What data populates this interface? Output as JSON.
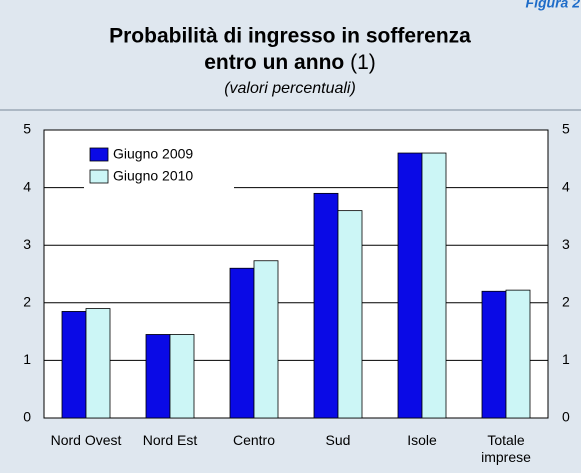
{
  "figure_label": "Figura 2",
  "chart_data": {
    "type": "bar",
    "title": [
      "Probabilità di ingresso in sofferenza",
      "entro un anno"
    ],
    "title_note": "(1)",
    "subtitle": "(valori percentuali)",
    "categories": [
      "Nord Ovest",
      "Nord Est",
      "Centro",
      "Sud",
      "Isole",
      "Totale imprese"
    ],
    "series": [
      {
        "name": "Giugno 2009",
        "color": "#0a0ae6",
        "values": [
          1.85,
          1.45,
          2.6,
          3.9,
          4.6,
          2.2
        ]
      },
      {
        "name": "Giugno 2010",
        "color": "#ccf6f6",
        "values": [
          1.9,
          1.45,
          2.73,
          3.6,
          4.6,
          2.22
        ]
      }
    ],
    "ylim": [
      0,
      5
    ],
    "yticks": [
      0,
      1,
      2,
      3,
      4,
      5
    ],
    "grid": true,
    "legend": "upper-left"
  }
}
